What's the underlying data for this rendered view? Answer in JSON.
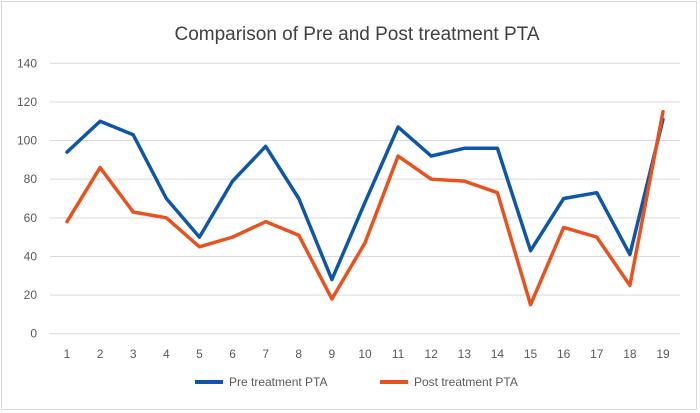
{
  "chart_data": {
    "type": "line",
    "title": "Comparison of Pre and Post treatment PTA",
    "xlabel": "",
    "ylabel": "",
    "categories": [
      "1",
      "2",
      "3",
      "4",
      "5",
      "6",
      "7",
      "8",
      "9",
      "10",
      "11",
      "12",
      "13",
      "14",
      "15",
      "16",
      "17",
      "18",
      "19"
    ],
    "ylim": [
      0,
      140
    ],
    "yticks": [
      0,
      20,
      40,
      60,
      80,
      100,
      120,
      140
    ],
    "grid": true,
    "legend_position": "bottom",
    "series": [
      {
        "name": "Pre treatment PTA",
        "color": "#0f56a6",
        "values": [
          94,
          110,
          103,
          70,
          50,
          79,
          97,
          70,
          28,
          68,
          107,
          92,
          96,
          96,
          43,
          70,
          73,
          41,
          111
        ]
      },
      {
        "name": "Post treatment PTA",
        "color": "#e8521f",
        "values": [
          58,
          86,
          63,
          60,
          45,
          50,
          58,
          51,
          18,
          47,
          92,
          80,
          79,
          73,
          15,
          55,
          50,
          25,
          115
        ]
      }
    ]
  }
}
